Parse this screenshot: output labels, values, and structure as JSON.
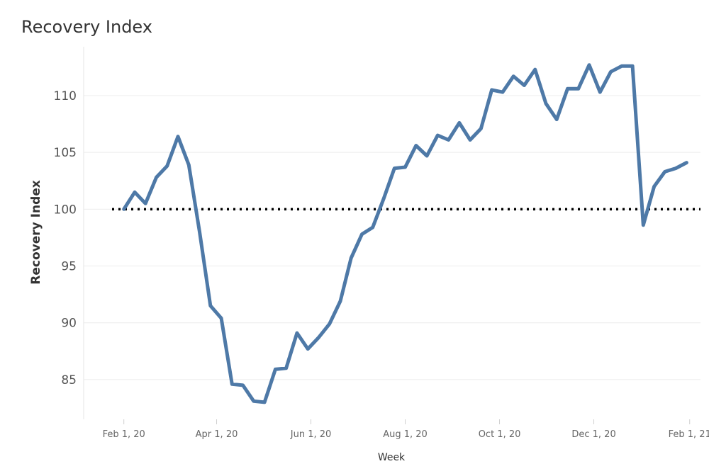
{
  "chart_data": {
    "type": "line",
    "title": "Recovery Index",
    "xlabel": "Week",
    "ylabel": "Recovery Index",
    "x_tick_labels": [
      "Feb 1, 20",
      "Apr 1, 20",
      "Jun 1, 20",
      "Aug 1, 20",
      "Oct 1, 20",
      "Dec 1, 20",
      "Feb 1, 21"
    ],
    "x_tick_dates": [
      "2020-02-01",
      "2020-04-01",
      "2020-06-01",
      "2020-08-01",
      "2020-10-01",
      "2020-12-01",
      "2021-02-01"
    ],
    "x_range": [
      "2020-01-06",
      "2021-02-08"
    ],
    "y_ticks": [
      85,
      90,
      95,
      100,
      105,
      110
    ],
    "ylim": [
      81.5,
      114.3
    ],
    "reference_line": {
      "value": 100,
      "style": "dotted",
      "color": "#000000"
    },
    "grid": "horizontal",
    "series": [
      {
        "color": "#4e79a7",
        "x": [
          "2020-02-01",
          "2020-02-08",
          "2020-02-15",
          "2020-02-22",
          "2020-02-29",
          "2020-03-07",
          "2020-03-14",
          "2020-03-21",
          "2020-03-28",
          "2020-04-04",
          "2020-04-11",
          "2020-04-18",
          "2020-04-25",
          "2020-05-02",
          "2020-05-09",
          "2020-05-16",
          "2020-05-23",
          "2020-05-30",
          "2020-06-06",
          "2020-06-13",
          "2020-06-20",
          "2020-06-27",
          "2020-07-04",
          "2020-07-11",
          "2020-07-18",
          "2020-07-25",
          "2020-08-01",
          "2020-08-08",
          "2020-08-15",
          "2020-08-22",
          "2020-08-29",
          "2020-09-05",
          "2020-09-12",
          "2020-09-19",
          "2020-09-26",
          "2020-10-03",
          "2020-10-10",
          "2020-10-17",
          "2020-10-24",
          "2020-10-31",
          "2020-11-07",
          "2020-11-14",
          "2020-11-21",
          "2020-11-28",
          "2020-12-05",
          "2020-12-12",
          "2020-12-19",
          "2020-12-26",
          "2021-01-02",
          "2021-01-09",
          "2021-01-16",
          "2021-01-23",
          "2021-01-30"
        ],
        "values": [
          100.0,
          101.5,
          100.5,
          102.8,
          103.8,
          106.4,
          103.9,
          98.0,
          91.5,
          90.4,
          84.6,
          84.5,
          83.1,
          83.0,
          85.9,
          86.0,
          89.1,
          87.7,
          88.7,
          89.9,
          91.9,
          95.7,
          97.8,
          98.4,
          100.9,
          103.6,
          103.7,
          105.6,
          104.7,
          106.5,
          106.1,
          107.6,
          106.1,
          107.1,
          110.5,
          110.3,
          111.7,
          110.9,
          112.3,
          109.3,
          107.9,
          110.6,
          110.6,
          112.7,
          110.3,
          112.1,
          112.6,
          112.6,
          98.6,
          102.0,
          103.3,
          103.6,
          104.1
        ]
      }
    ]
  }
}
